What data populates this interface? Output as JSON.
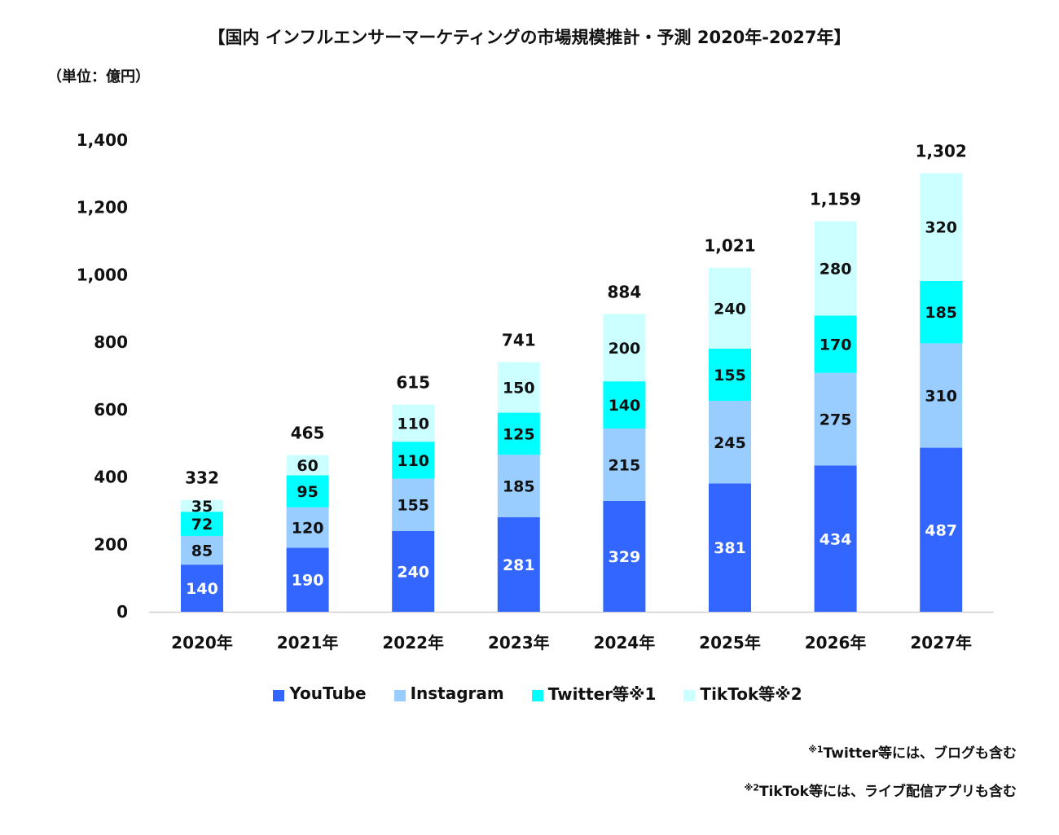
{
  "chart_data": {
    "type": "bar",
    "stacked": true,
    "title": "【国内 インフルエンサーマーケティングの市場規模推計・予測 2020年-2027年】",
    "unit_label": "（単位：億円）",
    "categories": [
      "2020年",
      "2021年",
      "2022年",
      "2023年",
      "2024年",
      "2025年",
      "2026年",
      "2027年"
    ],
    "series": [
      {
        "name": "YouTube",
        "color": "#3366FF",
        "label_color": "#FFFFFF",
        "values": [
          140,
          190,
          240,
          281,
          329,
          381,
          434,
          487
        ]
      },
      {
        "name": "Instagram",
        "color": "#99CCFF",
        "label_color": "#111111",
        "values": [
          85,
          120,
          155,
          185,
          215,
          245,
          275,
          310
        ]
      },
      {
        "name": "Twitter等※1",
        "color": "#00FFFF",
        "label_color": "#111111",
        "values": [
          72,
          95,
          110,
          125,
          140,
          155,
          170,
          185
        ]
      },
      {
        "name": "TikTok等※2",
        "color": "#CCFFFF",
        "label_color": "#111111",
        "values": [
          35,
          60,
          110,
          150,
          200,
          240,
          280,
          320
        ]
      }
    ],
    "totals": [
      "332",
      "465",
      "615",
      "741",
      "884",
      "1,021",
      "1,159",
      "1,302"
    ],
    "ylim": [
      0,
      1400
    ],
    "yticks": [
      "0",
      "200",
      "400",
      "600",
      "800",
      "1,000",
      "1,200",
      "1,400"
    ],
    "grid": false,
    "legend_position": "bottom"
  },
  "footnotes": [
    {
      "mark": "※1",
      "text": "Twitter等には、ブログも含む"
    },
    {
      "mark": "※2",
      "text": "TikTok等には、ライブ配信アプリも含む"
    }
  ]
}
